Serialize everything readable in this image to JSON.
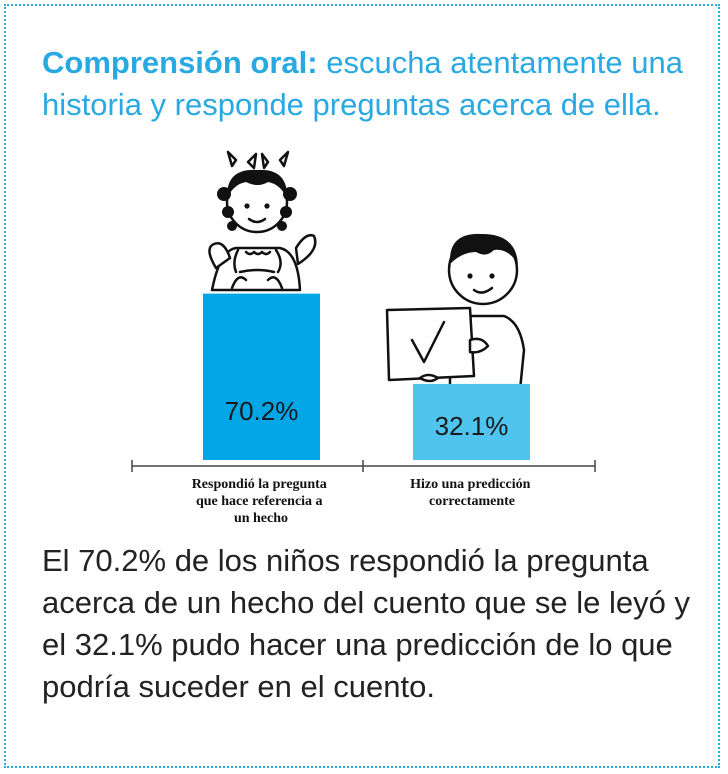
{
  "heading": {
    "bold": "Comprensión oral:",
    "rest": " escucha atentamente una historia y responde preguntas acerca de ella."
  },
  "chart_data": {
    "type": "bar",
    "categories": [
      [
        "Respondió la pregunta",
        "que hace referencia a",
        "un hecho"
      ],
      [
        "Hizo una predicción",
        "correctamente"
      ]
    ],
    "values": [
      70.2,
      32.1
    ],
    "value_labels": [
      "70.2%",
      "32.1%"
    ],
    "colors": [
      "#00a6e6",
      "#4ec4ee"
    ],
    "ylim": [
      0,
      100
    ],
    "grid": false,
    "legend": "none"
  },
  "body_text": "El 70.2% de los niños respondió la pregunta acerca de un hecho del cuento que se le leyó y el 32.1% pudo hacer una predicción de lo que podría suceder en el cuento."
}
